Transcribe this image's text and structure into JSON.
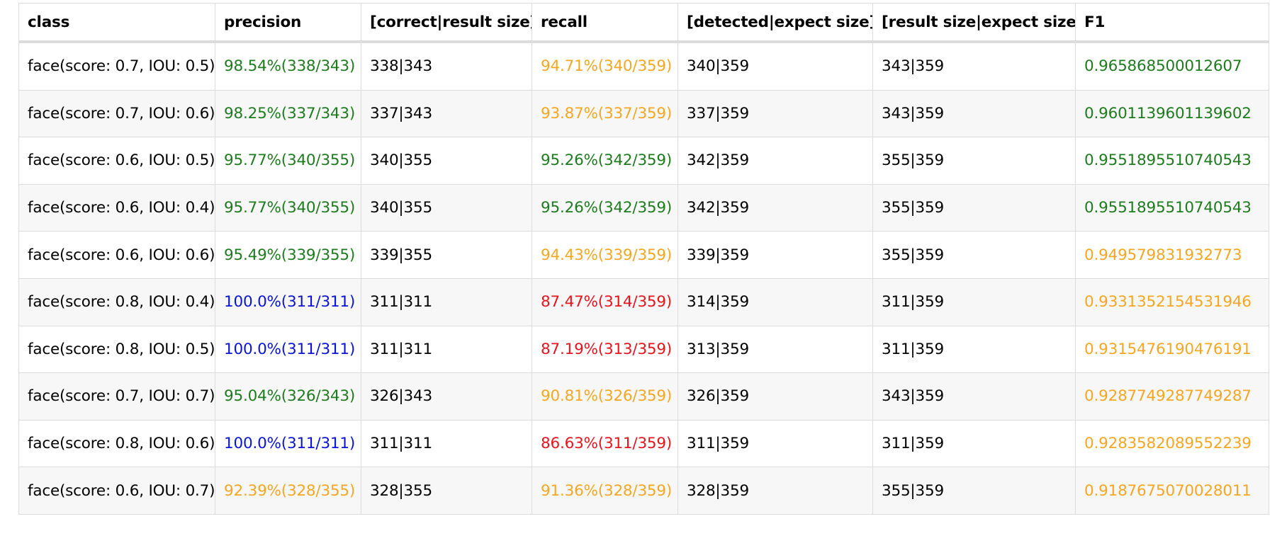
{
  "colors": {
    "green": "#1e7b1e",
    "orange": "#f5a623",
    "blue": "#0a14d6",
    "red": "#e8141d",
    "black": "#000000"
  },
  "table": {
    "headers": [
      "class",
      "precision",
      "[correct|result size]",
      "recall",
      "[detected|expect size]",
      "[result size|expect size]",
      "F1"
    ],
    "rows": [
      {
        "class": "face(score: 0.7, IOU: 0.5)",
        "precision": "98.54%(338/343)",
        "precision_color": "green",
        "correct_result": "338|343",
        "recall": "94.71%(340/359)",
        "recall_color": "orange",
        "detected_expect": "340|359",
        "result_expect": "343|359",
        "f1": "0.965868500012607",
        "f1_color": "green"
      },
      {
        "class": "face(score: 0.7, IOU: 0.6)",
        "precision": "98.25%(337/343)",
        "precision_color": "green",
        "correct_result": "337|343",
        "recall": "93.87%(337/359)",
        "recall_color": "orange",
        "detected_expect": "337|359",
        "result_expect": "343|359",
        "f1": "0.9601139601139602",
        "f1_color": "green"
      },
      {
        "class": "face(score: 0.6, IOU: 0.5)",
        "precision": "95.77%(340/355)",
        "precision_color": "green",
        "correct_result": "340|355",
        "recall": "95.26%(342/359)",
        "recall_color": "green",
        "detected_expect": "342|359",
        "result_expect": "355|359",
        "f1": "0.9551895510740543",
        "f1_color": "green"
      },
      {
        "class": "face(score: 0.6, IOU: 0.4)",
        "precision": "95.77%(340/355)",
        "precision_color": "green",
        "correct_result": "340|355",
        "recall": "95.26%(342/359)",
        "recall_color": "green",
        "detected_expect": "342|359",
        "result_expect": "355|359",
        "f1": "0.9551895510740543",
        "f1_color": "green"
      },
      {
        "class": "face(score: 0.6, IOU: 0.6)",
        "precision": "95.49%(339/355)",
        "precision_color": "green",
        "correct_result": "339|355",
        "recall": "94.43%(339/359)",
        "recall_color": "orange",
        "detected_expect": "339|359",
        "result_expect": "355|359",
        "f1": "0.949579831932773",
        "f1_color": "orange"
      },
      {
        "class": "face(score: 0.8, IOU: 0.4)",
        "precision": "100.0%(311/311)",
        "precision_color": "blue",
        "correct_result": "311|311",
        "recall": "87.47%(314/359)",
        "recall_color": "red",
        "detected_expect": "314|359",
        "result_expect": "311|359",
        "f1": "0.9331352154531946",
        "f1_color": "orange"
      },
      {
        "class": "face(score: 0.8, IOU: 0.5)",
        "precision": "100.0%(311/311)",
        "precision_color": "blue",
        "correct_result": "311|311",
        "recall": "87.19%(313/359)",
        "recall_color": "red",
        "detected_expect": "313|359",
        "result_expect": "311|359",
        "f1": "0.9315476190476191",
        "f1_color": "orange"
      },
      {
        "class": "face(score: 0.7, IOU: 0.7)",
        "precision": "95.04%(326/343)",
        "precision_color": "green",
        "correct_result": "326|343",
        "recall": "90.81%(326/359)",
        "recall_color": "orange",
        "detected_expect": "326|359",
        "result_expect": "343|359",
        "f1": "0.9287749287749287",
        "f1_color": "orange"
      },
      {
        "class": "face(score: 0.8, IOU: 0.6)",
        "precision": "100.0%(311/311)",
        "precision_color": "blue",
        "correct_result": "311|311",
        "recall": "86.63%(311/359)",
        "recall_color": "red",
        "detected_expect": "311|359",
        "result_expect": "311|359",
        "f1": "0.9283582089552239",
        "f1_color": "orange"
      },
      {
        "class": "face(score: 0.6, IOU: 0.7)",
        "precision": "92.39%(328/355)",
        "precision_color": "orange",
        "correct_result": "328|355",
        "recall": "91.36%(328/359)",
        "recall_color": "orange",
        "detected_expect": "328|359",
        "result_expect": "355|359",
        "f1": "0.9187675070028011",
        "f1_color": "orange"
      }
    ]
  }
}
